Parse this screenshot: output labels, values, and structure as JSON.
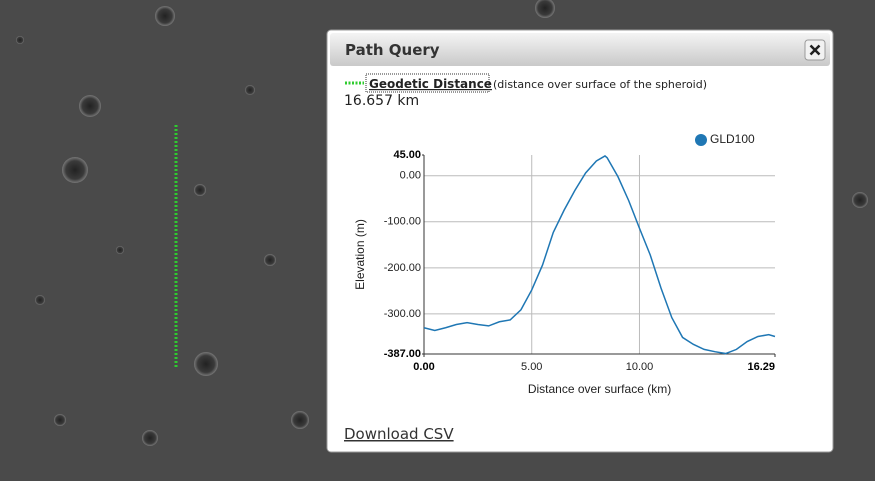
{
  "panel": {
    "title": "Path Query"
  },
  "measurement": {
    "label": "Geodetic Distance",
    "note": "(distance over surface of the spheroid)",
    "value": "16.657 km"
  },
  "download": "Download CSV",
  "chart_data": {
    "type": "line",
    "x_label": "Distance over surface (km)",
    "y_label": "Elevation (m)",
    "x": [
      0,
      0.5,
      1.0,
      1.5,
      2.0,
      2.5,
      3.0,
      3.5,
      4.0,
      4.5,
      5.0,
      5.5,
      6.0,
      6.5,
      7.0,
      7.5,
      8.0,
      8.4,
      8.5,
      9.0,
      9.5,
      10.0,
      10.5,
      11.0,
      11.5,
      12.0,
      12.5,
      13.0,
      13.5,
      14.0,
      14.5,
      15.0,
      15.5,
      16.0,
      16.29
    ],
    "series": [
      {
        "name": "GLD100",
        "color": "#1f77b4",
        "values": [
          -330,
          -336,
          -330,
          -323,
          -319,
          -323,
          -326,
          -317,
          -313,
          -291,
          -248,
          -194,
          -123,
          -75,
          -32,
          6,
          32,
          43,
          39,
          -2,
          -54,
          -114,
          -172,
          -244,
          -308,
          -351,
          -366,
          -377,
          -382,
          -386,
          -377,
          -360,
          -349,
          -345,
          -349
        ]
      }
    ],
    "xlim": [
      0,
      16.29
    ],
    "ylim": [
      -387,
      45
    ],
    "xticks": [
      {
        "value": 0,
        "label": "0.00"
      },
      {
        "value": 5,
        "label": "5.00"
      },
      {
        "value": 10,
        "label": "10.00"
      },
      {
        "value": 16.29,
        "label": "16.29"
      }
    ],
    "yticks": [
      {
        "value": 45,
        "label": "45.00"
      },
      {
        "value": 0,
        "label": "0.00"
      },
      {
        "value": -100,
        "label": "-100.00"
      },
      {
        "value": -200,
        "label": "-200.00"
      },
      {
        "value": -300,
        "label": "-300.00"
      },
      {
        "value": -387,
        "label": "-387.00"
      }
    ],
    "grid": true
  }
}
